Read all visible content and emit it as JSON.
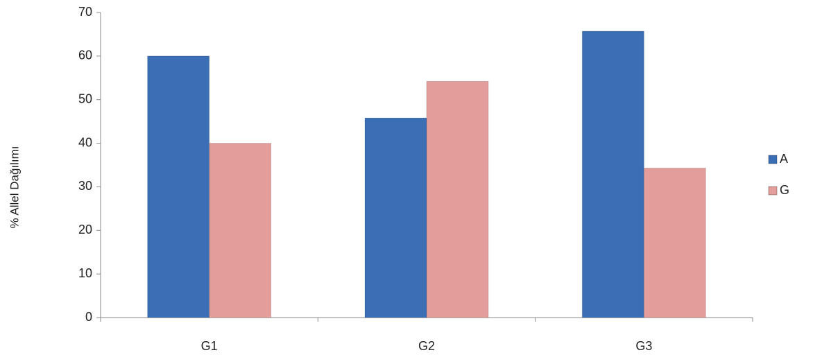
{
  "chart_data": {
    "type": "bar",
    "y_label": "% Allel Dağılımı",
    "categories": [
      "G1",
      "G2",
      "G3"
    ],
    "series": [
      {
        "name": "A",
        "color": "#3a6fb5",
        "values": [
          60,
          45.8,
          65.7
        ]
      },
      {
        "name": "G",
        "color": "#e39e9c",
        "values": [
          40,
          54.2,
          34.3
        ]
      }
    ],
    "ylim": [
      0,
      70
    ],
    "yticks": [
      0,
      10,
      20,
      30,
      40,
      50,
      60,
      70
    ],
    "legend": "right"
  }
}
